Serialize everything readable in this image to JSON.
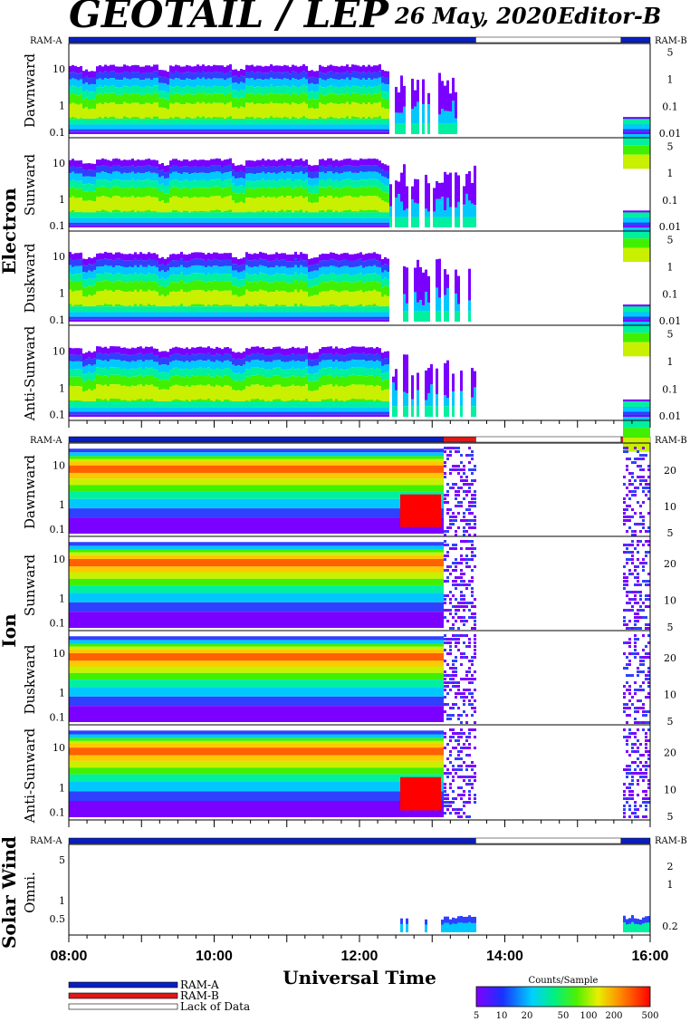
{
  "header": {
    "title": "GEOTAIL / LEP",
    "date": "26 May, 2020",
    "editor": "Editor-B"
  },
  "groups": {
    "electron": "Electron",
    "ion": "Ion",
    "solar_wind": "Solar Wind"
  },
  "mode_labels": {
    "ram_a": "RAM-A",
    "ram_b": "RAM-B"
  },
  "panel_labels": {
    "e_dawn": "Dawnward",
    "e_sun": "Sunward",
    "e_dusk": "Duskward",
    "e_anti": "Anti-Sunward",
    "i_dawn": "Dawnward",
    "i_sun": "Sunward",
    "i_dusk": "Duskward",
    "i_anti": "Anti-Sunward",
    "sw_omni": "Omni."
  },
  "x_axis": {
    "title": "Universal Time",
    "ticks": [
      "08:00",
      "10:00",
      "12:00",
      "14:00",
      "16:00"
    ]
  },
  "legend": {
    "ram_a": "RAM-A",
    "ram_b": "RAM-B",
    "lack": "Lack of Data"
  },
  "colorbar": {
    "title": "Counts/Sample",
    "ticks": [
      "5",
      "10",
      "20",
      "50",
      "100",
      "200",
      "500"
    ]
  },
  "chart_data": {
    "type": "heatmap",
    "time_range": [
      "08:00",
      "16:00"
    ],
    "colorbar_range": [
      5,
      500
    ],
    "electron_left_ticks": [
      "10",
      "1",
      "0.1"
    ],
    "electron_right_ticks": [
      "5",
      "1",
      "0.1",
      "0.01"
    ],
    "ion_left_ticks": [
      "10",
      "1",
      "0.1"
    ],
    "ion_right_ticks": [
      "20",
      "10",
      "5"
    ],
    "sw_left_ticks": [
      "5",
      "1",
      "0.5"
    ],
    "sw_right_ticks": [
      "2",
      "1",
      "0.2"
    ],
    "data_end_hour": 13.6,
    "data_resume_hour": 15.6,
    "mode_bars": {
      "electron": [
        {
          "from": 8.0,
          "to": 13.6,
          "mode": "RAM-A"
        },
        {
          "from": 13.6,
          "to": 15.6,
          "mode": "Lack of Data"
        },
        {
          "from": 15.6,
          "to": 16.0,
          "mode": "RAM-A"
        }
      ],
      "ion": [
        {
          "from": 8.0,
          "to": 13.15,
          "mode": "RAM-A"
        },
        {
          "from": 13.15,
          "to": 13.6,
          "mode": "RAM-B"
        },
        {
          "from": 13.6,
          "to": 15.6,
          "mode": "Lack of Data"
        },
        {
          "from": 15.6,
          "to": 16.0,
          "mode": "RAM-B"
        }
      ],
      "solar_wind": [
        {
          "from": 8.0,
          "to": 13.6,
          "mode": "RAM-A"
        },
        {
          "from": 13.6,
          "to": 15.6,
          "mode": "Lack of Data"
        },
        {
          "from": 15.6,
          "to": 16.0,
          "mode": "RAM-A"
        }
      ]
    }
  },
  "colors": {
    "ram_a": "#0a1fc0",
    "ram_b": "#e01818",
    "palette": [
      "#7a00ff",
      "#3040ff",
      "#00c8ff",
      "#00f0a0",
      "#40f000",
      "#c8f000",
      "#ffc800",
      "#ff6000",
      "#ff0000"
    ]
  }
}
